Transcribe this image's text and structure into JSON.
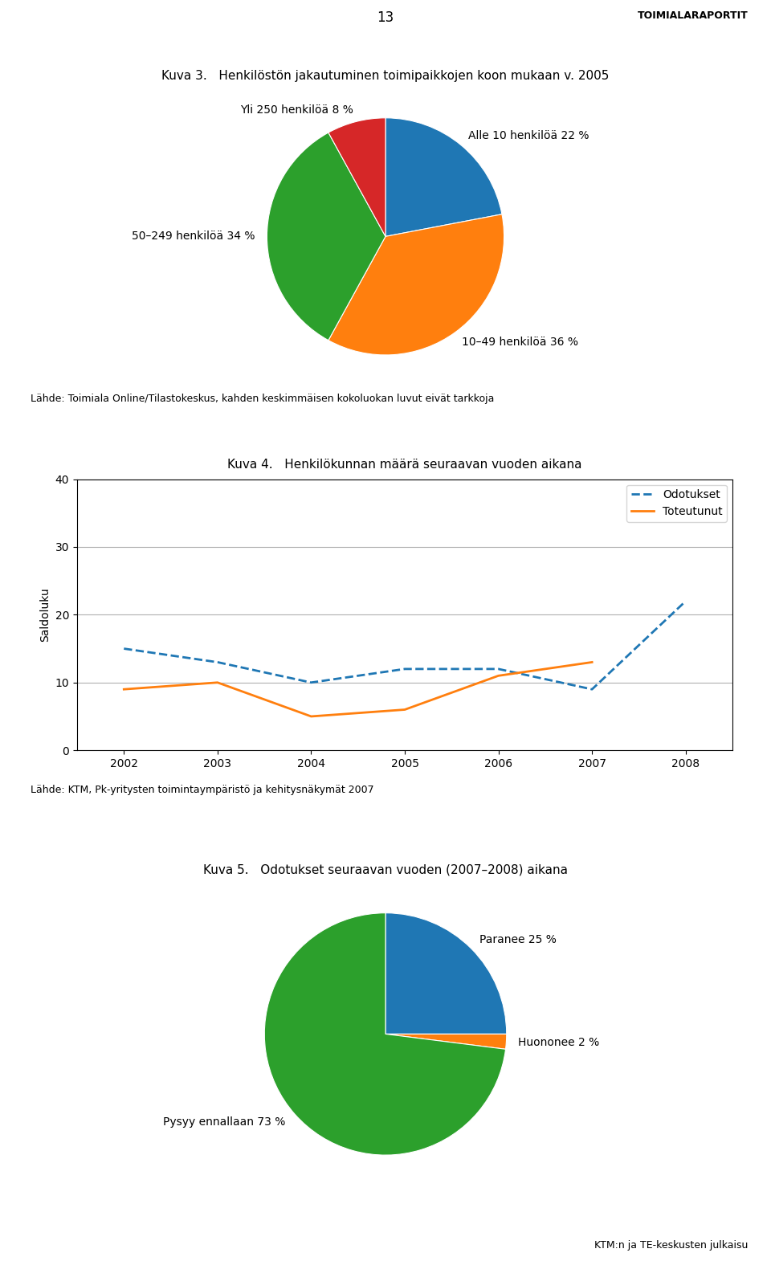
{
  "annotations": [
    "13",
    "TOIMIALARAPORTIT",
    "KTM:n ja TE-keskusten julkaisu"
  ],
  "chart_data": [
    {
      "type": "pie",
      "title": "Kuva 3.   Henkilöstön jakautuminen toimipaikkojen koon mukaan v. 2005",
      "categories": [
        "Alle 10 henkilöä 22 %",
        "10–49 henkilöä 36 %",
        "50–249 henkilöä 34 %",
        "Yli 250 henkilöä 8 %"
      ],
      "values": [
        22,
        36,
        34,
        8
      ],
      "annotations": [
        "Lähde: Toimiala Online/Tilastokeskus, kahden keskimmäisen kokoluokan luvut eivät tarkkoja"
      ]
    },
    {
      "type": "line",
      "title": "Kuva 4.   Henkilökunnan määrä seuraavan vuoden aikana",
      "y_label": "Saldoluku",
      "x": [
        2002,
        2003,
        2004,
        2005,
        2006,
        2007,
        2008
      ],
      "series": [
        {
          "name": "Odotukset",
          "line_style": "dashed",
          "values": [
            15,
            13,
            10,
            12,
            12,
            9,
            22
          ]
        },
        {
          "name": "Toteutunut",
          "line_style": "solid",
          "values": [
            9,
            10,
            5,
            6,
            11,
            13,
            null
          ]
        }
      ],
      "xlim": [
        2001.5,
        2008.5
      ],
      "xticks": [
        2002,
        2003,
        2004,
        2005,
        2006,
        2007,
        2008
      ],
      "ylim": [
        0,
        40
      ],
      "yticks": [
        0,
        10,
        20,
        30,
        40
      ],
      "grid": true,
      "legend": "upper right",
      "annotations": [
        "Lähde: KTM, Pk-yritysten toimintaympäristö ja kehitysnäkymät 2007"
      ]
    },
    {
      "type": "pie",
      "title": "Kuva 5.   Odotukset seuraavan vuoden (2007–2008) aikana",
      "categories": [
        "Paranee 25 %",
        "Huononee 2 %",
        "Pysyy ennallaan 73 %"
      ],
      "values": [
        25,
        2,
        73
      ]
    }
  ]
}
